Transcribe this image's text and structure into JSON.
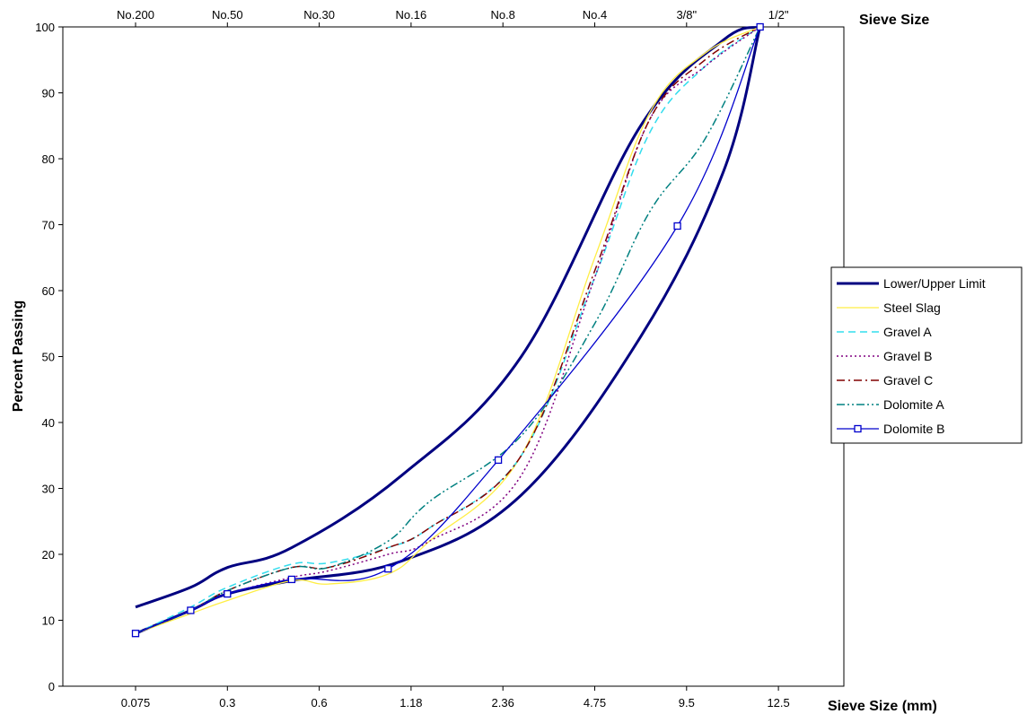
{
  "chart_data": {
    "type": "line",
    "x_bottom_label": "Sieve Size (mm)",
    "x_top_label": "Sieve Size",
    "ylabel": "Percent Passing",
    "ylim": [
      0,
      100
    ],
    "yticks": [
      0,
      10,
      20,
      30,
      40,
      50,
      60,
      70,
      80,
      90,
      100
    ],
    "bottom_tick_labels": [
      "0.075",
      "0.3",
      "0.6",
      "1.18",
      "2.36",
      "4.75",
      "9.5",
      "12.5"
    ],
    "top_tick_labels": [
      "No.200",
      "No.50",
      "No.30",
      "No.16",
      "No.8",
      "No.4",
      "3/8\"",
      "1/2\""
    ],
    "grid": false,
    "legend_position": "right",
    "series": [
      {
        "name": "Lower/Upper Limit",
        "color": "#000080",
        "style": "solid-thick",
        "marker": "none",
        "x": [
          0,
          0.6,
          1,
          1.7,
          2.9,
          4.2,
          5.5,
          6.4,
          6.8
        ],
        "y": [
          12,
          15,
          18,
          21,
          32,
          50,
          85,
          98,
          100
        ]
      },
      {
        "name": "Lower/Upper Limit",
        "color": "#000080",
        "style": "solid-thick",
        "marker": "none",
        "hide_in_legend": true,
        "x": [
          0,
          0.6,
          1,
          1.7,
          2.9,
          4.2,
          5.5,
          6.4,
          6.8
        ],
        "y": [
          8,
          11.5,
          14,
          16,
          19,
          29,
          53,
          78,
          100
        ]
      },
      {
        "name": "Steel Slag",
        "color": "#FFEE44",
        "style": "solid",
        "marker": "none",
        "x": [
          0,
          0.6,
          1,
          1.7,
          2.1,
          2.75,
          3.2,
          4.2,
          5,
          5.6,
          6.2,
          6.8
        ],
        "y": [
          8,
          11,
          13,
          16,
          15.5,
          17,
          22,
          35,
          65,
          87,
          96,
          100
        ]
      },
      {
        "name": "Gravel A",
        "color": "#33DDEE",
        "style": "dashed",
        "marker": "none",
        "x": [
          0,
          0.6,
          1,
          1.7,
          2.1,
          2.75,
          3.2,
          4.2,
          5,
          5.6,
          6.2,
          6.8
        ],
        "y": [
          8,
          12,
          15,
          18.5,
          18.7,
          21,
          24,
          35,
          62,
          84,
          94,
          100
        ]
      },
      {
        "name": "Gravel B",
        "color": "#800080",
        "style": "dotted",
        "marker": "none",
        "x": [
          0,
          0.6,
          1,
          1.7,
          2.1,
          2.75,
          3.2,
          4.2,
          5,
          5.6,
          6.2,
          6.8
        ],
        "y": [
          8,
          11.5,
          14,
          16.5,
          17.5,
          20,
          22,
          32,
          62,
          86,
          94,
          100
        ]
      },
      {
        "name": "Gravel C",
        "color": "#800000",
        "style": "dashdot",
        "marker": "none",
        "x": [
          0,
          0.6,
          1,
          1.7,
          2.1,
          2.75,
          3.2,
          4.2,
          5,
          5.6,
          6.2,
          6.8
        ],
        "y": [
          8,
          11.5,
          14.5,
          18,
          18,
          21,
          24,
          35,
          63,
          86,
          95,
          100
        ]
      },
      {
        "name": "Dolomite A",
        "color": "#008080",
        "style": "dashdotdot",
        "marker": "none",
        "x": [
          0,
          0.6,
          1,
          1.7,
          2.1,
          2.75,
          3.2,
          4.2,
          5,
          5.6,
          6.2,
          6.8
        ],
        "y": [
          8,
          11.5,
          14.5,
          18,
          18,
          22,
          28,
          38,
          55,
          72,
          83,
          100
        ]
      },
      {
        "name": "Dolomite B",
        "color": "#0000CC",
        "style": "solid",
        "marker": "square",
        "x": [
          0,
          0.6,
          1,
          1.7,
          2.75,
          3.95,
          5.9,
          6.8
        ],
        "y": [
          8,
          11.5,
          14,
          16.2,
          17.8,
          34.3,
          69.8,
          100
        ]
      }
    ]
  }
}
